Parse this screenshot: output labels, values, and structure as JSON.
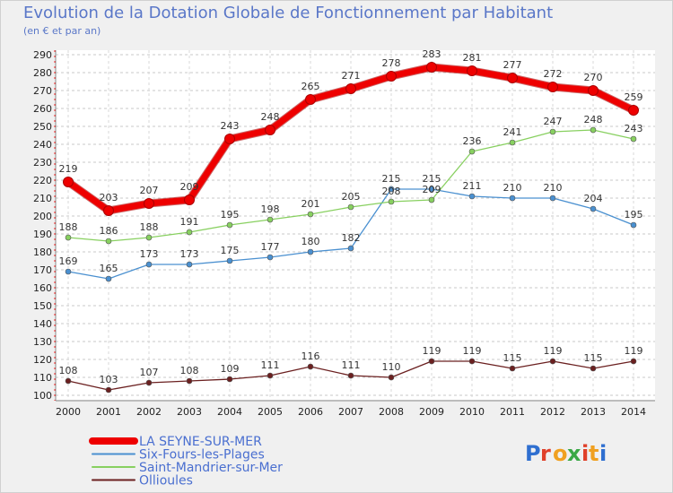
{
  "title": "Evolution de la Dotation Globale de Fonctionnement par Habitant",
  "subtitle": "(en € et par an)",
  "logo": {
    "text": "Proxiti",
    "colors": [
      "#2f6fd0",
      "#e0402a",
      "#f0a020",
      "#3aa845",
      "#e0402a",
      "#f0a020",
      "#2f6fd0"
    ]
  },
  "chart_data": {
    "type": "line",
    "x": [
      "2000",
      "2001",
      "2002",
      "2003",
      "2004",
      "2005",
      "2006",
      "2007",
      "2008",
      "2009",
      "2010",
      "2011",
      "2012",
      "2013",
      "2014"
    ],
    "ylim": [
      100,
      290
    ],
    "yticks": [
      100,
      110,
      120,
      130,
      140,
      150,
      160,
      170,
      180,
      190,
      200,
      210,
      220,
      230,
      240,
      250,
      260,
      270,
      280,
      290
    ],
    "grid": true,
    "legend_position": "bottom-left",
    "series": [
      {
        "name": "LA SEYNE-SUR-MER",
        "color": "#ee0000",
        "width": 7,
        "labels": true,
        "values": [
          219,
          203,
          207,
          209,
          243,
          248,
          265,
          271,
          278,
          283,
          281,
          277,
          272,
          270,
          259
        ]
      },
      {
        "name": "Six-Fours-les-Plages",
        "color": "#4a90d0",
        "width": 1.3,
        "labels": true,
        "values": [
          169,
          165,
          173,
          173,
          175,
          177,
          180,
          182,
          215,
          215,
          211,
          210,
          210,
          204,
          195
        ]
      },
      {
        "name": "Saint-Mandrier-sur-Mer",
        "color": "#88d060",
        "width": 1.3,
        "labels": true,
        "values": [
          188,
          186,
          188,
          191,
          195,
          198,
          201,
          205,
          208,
          209,
          236,
          241,
          247,
          248,
          243
        ]
      },
      {
        "name": "Ollioules",
        "color": "#6b2020",
        "width": 1.3,
        "labels": true,
        "values": [
          108,
          103,
          107,
          108,
          109,
          111,
          116,
          111,
          110,
          119,
          119,
          115,
          119,
          115,
          119
        ]
      }
    ]
  }
}
